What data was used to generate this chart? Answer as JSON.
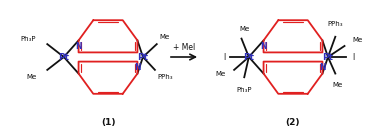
{
  "bg_color": "#ffffff",
  "red": "#e02020",
  "blue": "#3030bb",
  "black": "#111111",
  "fig_width": 3.78,
  "fig_height": 1.35,
  "dpi": 100,
  "label1": "(1)",
  "label2": "(2)",
  "reaction": "+ MeI"
}
